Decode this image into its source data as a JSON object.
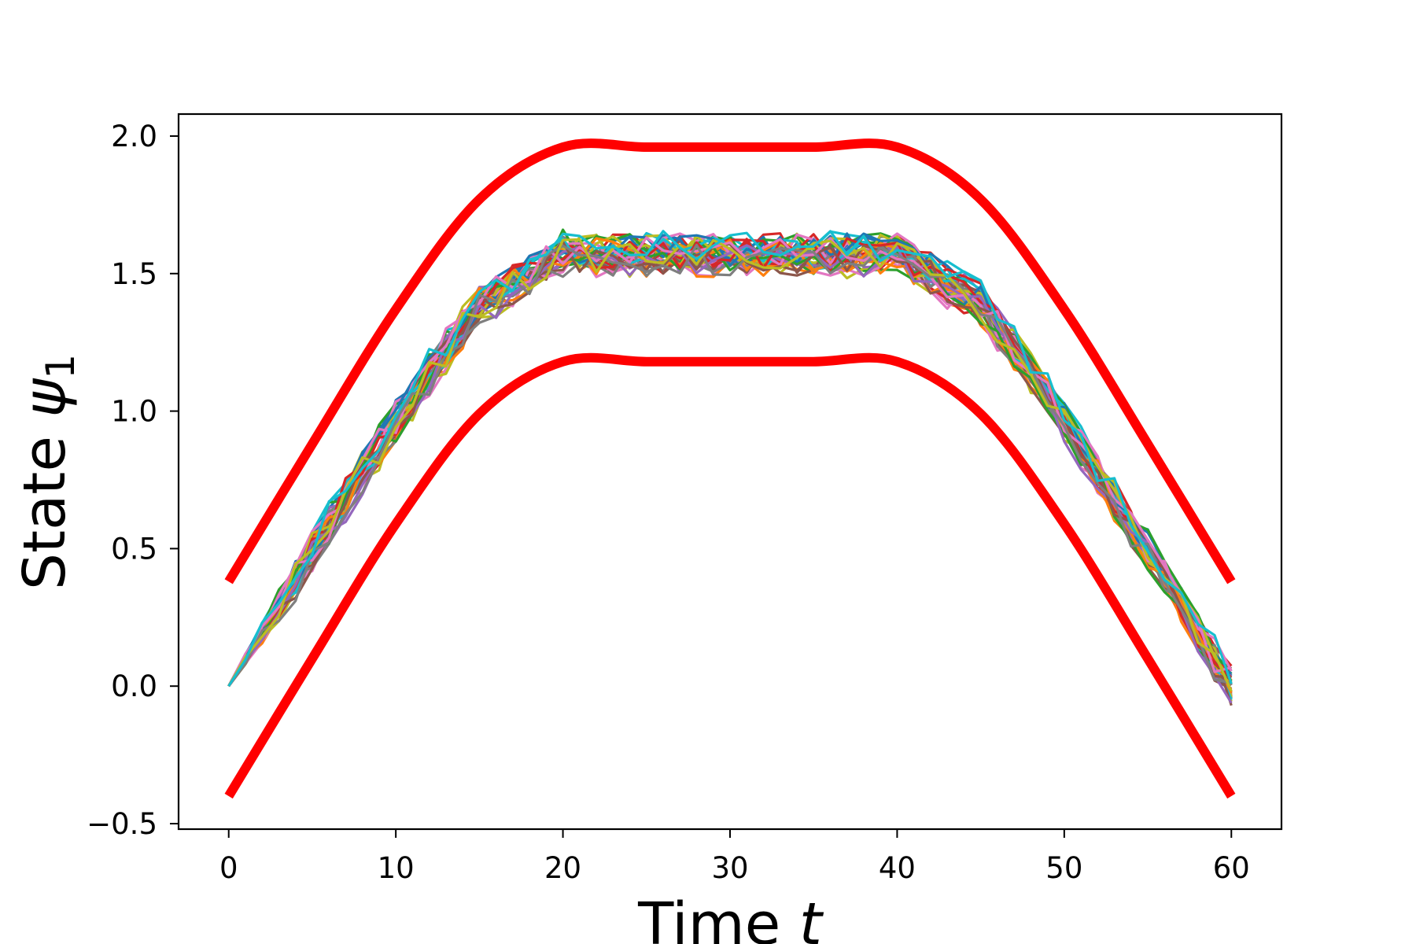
{
  "chart_data": {
    "type": "line",
    "title": "",
    "xlabel": "Time",
    "xlabel_var": "t",
    "ylabel": "State",
    "ylabel_var": "ψ",
    "ylabel_sub": "1",
    "xlim": [
      -3,
      63
    ],
    "ylim": [
      -0.52,
      2.08
    ],
    "x_ticks": [
      0,
      10,
      20,
      30,
      40,
      50,
      60
    ],
    "y_ticks": [
      -0.5,
      0.0,
      0.5,
      1.0,
      1.5,
      2.0
    ],
    "x_tick_labels": [
      "0",
      "10",
      "20",
      "30",
      "40",
      "50",
      "60"
    ],
    "y_tick_labels": [
      "−0.5",
      "0.0",
      "0.5",
      "1.0",
      "1.5",
      "2.0"
    ],
    "grid": false,
    "legend": "none",
    "bounds": {
      "color": "#ff0000",
      "x": [
        0,
        5,
        10,
        15,
        20,
        25,
        30,
        35,
        40,
        45,
        50,
        55,
        60
      ],
      "upper": [
        0.38,
        0.88,
        1.37,
        1.77,
        1.96,
        1.96,
        1.96,
        1.96,
        1.96,
        1.77,
        1.37,
        0.88,
        0.38
      ],
      "lower": [
        -0.4,
        0.1,
        0.59,
        0.99,
        1.18,
        1.18,
        1.18,
        1.18,
        1.18,
        0.99,
        0.59,
        0.1,
        -0.4
      ]
    },
    "trajectory_colors": [
      "#1f77b4",
      "#ff7f0e",
      "#2ca02c",
      "#d62728",
      "#9467bd",
      "#8c564b",
      "#e377c2",
      "#7f7f7f",
      "#bcbd22",
      "#17becf"
    ],
    "trajectory_count": 40,
    "trajectory_mean": {
      "x": [
        0,
        5,
        10,
        15,
        20,
        25,
        30,
        35,
        40,
        45,
        50,
        55,
        60
      ],
      "y": [
        0.0,
        0.49,
        0.97,
        1.39,
        1.57,
        1.57,
        1.57,
        1.57,
        1.57,
        1.39,
        0.97,
        0.49,
        0.0
      ]
    },
    "trajectory_spread": 0.12
  }
}
